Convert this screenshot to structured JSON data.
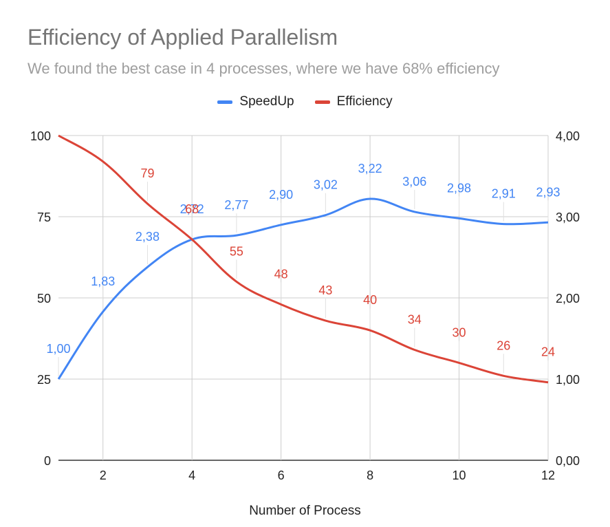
{
  "chart_data": {
    "type": "line",
    "title": "Efficiency of Applied Parallelism",
    "subtitle": "We found the best case in 4 processes, where we have 68% efficiency",
    "xlabel": "Number of Process",
    "ylabel_left": "",
    "ylabel_right": "",
    "x": [
      1,
      2,
      3,
      4,
      5,
      6,
      7,
      8,
      9,
      10,
      11,
      12
    ],
    "xlim": [
      1,
      12
    ],
    "xticks": [
      "2",
      "4",
      "6",
      "8",
      "10",
      "12"
    ],
    "xtick_values": [
      2,
      4,
      6,
      8,
      10,
      12
    ],
    "ylim_left": [
      0,
      100
    ],
    "yticks_left": [
      "0",
      "25",
      "50",
      "75",
      "100"
    ],
    "ylim_right": [
      0,
      4
    ],
    "yticks_right": [
      "0,00",
      "1,00",
      "2,00",
      "3,00",
      "4,00"
    ],
    "grid": true,
    "legend_position": "top-center",
    "series": [
      {
        "name": "SpeedUp",
        "axis": "right",
        "color": "#4285f4",
        "values": [
          1.0,
          1.83,
          2.38,
          2.72,
          2.77,
          2.9,
          3.02,
          3.22,
          3.06,
          2.98,
          2.91,
          2.93
        ],
        "labels": [
          "1,00",
          "1,83",
          "2,38",
          "2,72",
          "2,77",
          "2,90",
          "3,02",
          "3,22",
          "3,06",
          "2,98",
          "2,91",
          "2,93"
        ]
      },
      {
        "name": "Efficiency",
        "axis": "left",
        "color": "#db4437",
        "values": [
          100,
          92,
          79,
          68,
          55,
          48,
          43,
          40,
          34,
          30,
          26,
          24
        ],
        "labels": [
          "100",
          "92",
          "79",
          "68",
          "55",
          "48",
          "43",
          "40",
          "34",
          "30",
          "26",
          "24"
        ],
        "labels_shown": [
          false,
          false,
          true,
          true,
          true,
          true,
          true,
          true,
          true,
          true,
          true,
          true
        ]
      }
    ]
  }
}
